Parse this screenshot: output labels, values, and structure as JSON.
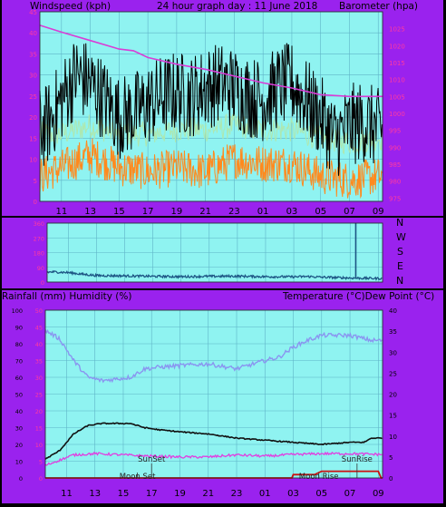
{
  "colors": {
    "panel_bg": "#9a22ee",
    "plot_bg": "#8ff3f1",
    "grid": "#5fb4c8",
    "left_axis_text": "#ff3aa0",
    "wind_speed": "#000000",
    "wind_gust_band": "#aee8b0",
    "wind_low": "#ff8a1e",
    "barometer": "#d93dd6",
    "direction": "#1d5584",
    "direction_spike": "#1d5584",
    "humidity": "#8a95f0",
    "temperature": "#111111",
    "dew_point": "#e23de0",
    "rainfall": "#cc1111",
    "event_marker": "#333333"
  },
  "header": {
    "left": "Windspeed (kph)",
    "center": "24 hour graph day : 11 June 2018",
    "right": "Barometer (hpa)"
  },
  "direction_labels": [
    "N",
    "W",
    "S",
    "E",
    "N"
  ],
  "temp_header": {
    "left": "Rainfall (mm)  Humidity (%)",
    "right": "Temperature (°C)Dew Point (°C)"
  },
  "chart_data": [
    {
      "type": "line",
      "panel": "wind-barometer",
      "title": "24 hour graph day : 11 June 2018",
      "left_axis": {
        "label": "Windspeed (kph)",
        "min": 0,
        "max": 45,
        "ticks": [
          0,
          5,
          10,
          15,
          20,
          25,
          30,
          35,
          40,
          45
        ]
      },
      "right_axis": {
        "label": "Barometer (hpa)",
        "min": 974,
        "max": 1030,
        "ticks": [
          975,
          980,
          985,
          990,
          995,
          1000,
          1005,
          1010,
          1015,
          1020,
          1025
        ]
      },
      "x_ticks": [
        "11",
        "13",
        "15",
        "17",
        "19",
        "21",
        "23",
        "01",
        "03",
        "05",
        "07",
        "09"
      ],
      "x_hours": [
        11,
        13,
        15,
        17,
        19,
        21,
        23,
        25,
        27,
        29,
        31,
        33
      ],
      "x_range": [
        9.5,
        33.3
      ],
      "grid": true,
      "series": [
        {
          "key": "wind_speed",
          "x": [
            9.5,
            10,
            11,
            12,
            13,
            14,
            15,
            16,
            17,
            18,
            19,
            20,
            21,
            22,
            23,
            24,
            25,
            26,
            27,
            28,
            29,
            30,
            31,
            32,
            33,
            33.3
          ],
          "values": [
            17,
            18,
            24,
            30,
            28,
            24,
            20,
            21,
            23,
            25,
            26,
            25,
            27,
            28,
            27,
            25,
            24,
            27,
            28,
            24,
            20,
            15,
            18,
            19,
            17,
            17
          ]
        },
        {
          "key": "wind_gust_band",
          "x": [
            9.5,
            11,
            13,
            15,
            17,
            19,
            21,
            23,
            25,
            27,
            29,
            31,
            33,
            33.3
          ],
          "values": [
            16,
            16,
            18,
            16,
            16,
            17,
            17,
            18,
            17,
            17,
            15,
            14,
            15,
            15
          ]
        },
        {
          "key": "wind_low",
          "x": [
            9.5,
            11,
            13,
            15,
            17,
            19,
            21,
            23,
            25,
            27,
            29,
            31,
            33,
            33.3
          ],
          "values": [
            6,
            8,
            11,
            8,
            7,
            8,
            7,
            10,
            9,
            9,
            6,
            5,
            6,
            6
          ]
        },
        {
          "key": "barometer",
          "x": [
            9.5,
            11,
            13,
            15,
            16,
            17,
            19,
            21,
            23,
            25,
            27,
            29,
            31,
            33,
            33.3
          ],
          "values": [
            1026,
            1024,
            1021.5,
            1019,
            1018.5,
            1016.5,
            1014.5,
            1013,
            1011,
            1009,
            1007.5,
            1005.5,
            1005,
            1005,
            1005
          ]
        }
      ]
    },
    {
      "type": "line",
      "panel": "wind-direction",
      "y_min": 0,
      "y_max": 360,
      "y_ticks": [
        "360",
        "270",
        "180",
        "90",
        "0"
      ],
      "right_labels": [
        "N",
        "W",
        "S",
        "E",
        "N"
      ],
      "series": [
        {
          "key": "direction",
          "x": [
            9.5,
            10,
            11,
            12,
            13,
            15,
            17,
            19,
            21,
            23,
            25,
            27,
            28,
            29,
            31,
            33,
            33.3
          ],
          "values": [
            60,
            62,
            58,
            48,
            40,
            38,
            35,
            33,
            35,
            36,
            33,
            32,
            34,
            30,
            25,
            22,
            22
          ]
        }
      ],
      "spike": {
        "x": 31.4,
        "value": 360
      }
    },
    {
      "type": "line",
      "panel": "temperature-humidity",
      "left_axis": {
        "label": "Rainfall (mm)  Humidity (%)",
        "humidity_ticks": [
          0,
          10,
          20,
          30,
          40,
          50,
          60,
          70,
          80,
          90,
          100
        ],
        "rain_ticks": [
          0,
          5,
          10,
          15,
          20,
          25,
          30,
          35,
          40,
          45,
          50
        ]
      },
      "right_axis": {
        "label": "Temperature (°C)Dew Point (°C)",
        "min": 0,
        "max": 40,
        "ticks": [
          0,
          5,
          10,
          15,
          20,
          25,
          30,
          35,
          40
        ]
      },
      "x_ticks": [
        "11",
        "13",
        "15",
        "17",
        "19",
        "21",
        "23",
        "01",
        "03",
        "05",
        "07",
        "09"
      ],
      "series": [
        {
          "key": "humidity",
          "x": [
            9.5,
            10.5,
            11.5,
            12.5,
            13.5,
            14.5,
            15.5,
            16.5,
            17.5,
            19,
            21,
            23,
            25,
            26,
            27,
            28,
            29,
            31,
            32.5,
            33.3
          ],
          "values": [
            88,
            83,
            70,
            60,
            58,
            59,
            60,
            65,
            66,
            67,
            68,
            65,
            70,
            72,
            78,
            82,
            85,
            85,
            82,
            82
          ]
        },
        {
          "key": "temperature",
          "x": [
            9.5,
            10.5,
            11.5,
            12.5,
            13.5,
            15.5,
            16.5,
            17.5,
            19,
            21,
            23,
            25,
            27,
            29,
            31,
            32,
            32.5,
            33.3
          ],
          "values": [
            4.5,
            6.5,
            10.5,
            12.5,
            13,
            13,
            12,
            11.5,
            11,
            10.5,
            9.5,
            9,
            8.5,
            8,
            8.5,
            8.5,
            9.5,
            9.5
          ]
        },
        {
          "key": "dew_point",
          "x": [
            9.5,
            11.5,
            13,
            15,
            17,
            19,
            21,
            23,
            25,
            27,
            29,
            31,
            33.3
          ],
          "values": [
            3,
            5.5,
            5.8,
            5.5,
            5.2,
            5,
            5,
            5.5,
            5.2,
            5.6,
            5.8,
            5.8,
            5.6
          ]
        },
        {
          "key": "rainfall",
          "x": [
            9.5,
            25,
            26.9,
            27,
            28.5,
            29,
            33,
            33.2,
            33.3
          ],
          "values": [
            0,
            0,
            0,
            1,
            1,
            2,
            2,
            0,
            0
          ]
        }
      ],
      "events": [
        {
          "label": "Moon Set",
          "hour": 16,
          "row": "lower"
        },
        {
          "label": "SunSet",
          "hour": 17,
          "row": "upper"
        },
        {
          "label": "Moon Rise",
          "hour": 28.8,
          "row": "lower"
        },
        {
          "label": "SunRise",
          "hour": 31.5,
          "row": "upper"
        }
      ]
    }
  ]
}
